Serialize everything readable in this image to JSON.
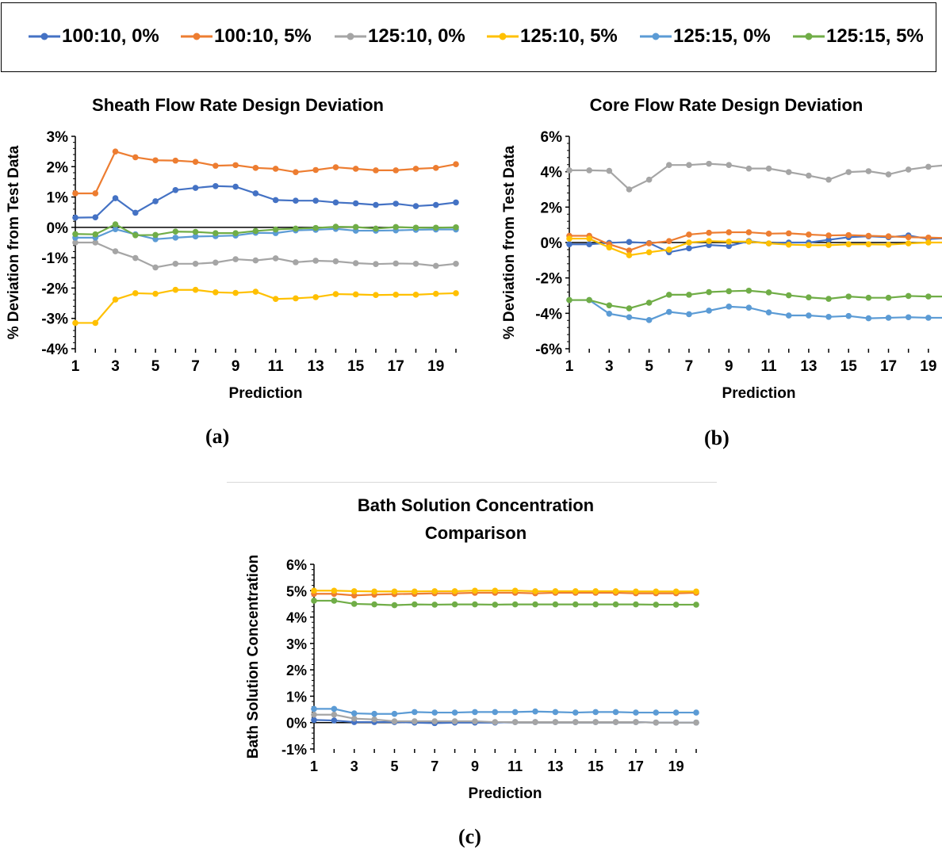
{
  "legend": [
    {
      "label": "100:10, 0%",
      "color": "#4472C4"
    },
    {
      "label": "100:10, 5%",
      "color": "#ED7D31"
    },
    {
      "label": "125:10, 0%",
      "color": "#A5A5A5"
    },
    {
      "label": "125:10, 5%",
      "color": "#FFC000"
    },
    {
      "label": "125:15, 0%",
      "color": "#5B9BD5"
    },
    {
      "label": "125:15, 5%",
      "color": "#70AD47"
    }
  ],
  "panel_labels": {
    "a": "(a)",
    "b": "(b)",
    "c": "(c)"
  },
  "chart_data": [
    {
      "type": "line",
      "title": "Sheath Flow Rate Design Deviation",
      "xlabel": "Prediction",
      "ylabel": "% Deviation from Test Data",
      "x": [
        1,
        2,
        3,
        4,
        5,
        6,
        7,
        8,
        9,
        10,
        11,
        12,
        13,
        14,
        15,
        16,
        17,
        18,
        19,
        20
      ],
      "x_ticks": [
        1,
        3,
        5,
        7,
        9,
        11,
        13,
        15,
        17,
        19
      ],
      "ylim": [
        -4,
        3
      ],
      "y_ticks": [
        -4,
        -3,
        -2,
        -1,
        0,
        1,
        2,
        3
      ],
      "y_tick_labels": [
        "-4%",
        "-3%",
        "-2%",
        "-1%",
        "0%",
        "1%",
        "2%",
        "3%"
      ],
      "series": [
        {
          "name": "100:10, 0%",
          "color": "#4472C4",
          "values": [
            0.32,
            0.33,
            0.96,
            0.48,
            0.86,
            1.23,
            1.3,
            1.36,
            1.34,
            1.12,
            0.9,
            0.88,
            0.88,
            0.82,
            0.79,
            0.74,
            0.78,
            0.7,
            0.74,
            0.82
          ]
        },
        {
          "name": "100:10, 5%",
          "color": "#ED7D31",
          "values": [
            1.12,
            1.12,
            2.5,
            2.31,
            2.21,
            2.2,
            2.16,
            2.03,
            2.05,
            1.96,
            1.93,
            1.82,
            1.89,
            1.98,
            1.93,
            1.88,
            1.88,
            1.93,
            1.96,
            2.08
          ]
        },
        {
          "name": "125:10, 0%",
          "color": "#A5A5A5",
          "values": [
            -0.5,
            -0.5,
            -0.79,
            -1.01,
            -1.32,
            -1.2,
            -1.2,
            -1.16,
            -1.05,
            -1.09,
            -1.02,
            -1.15,
            -1.1,
            -1.12,
            -1.18,
            -1.21,
            -1.19,
            -1.2,
            -1.27,
            -1.2
          ]
        },
        {
          "name": "125:10, 5%",
          "color": "#FFC000",
          "values": [
            -3.15,
            -3.15,
            -2.38,
            -2.17,
            -2.19,
            -2.06,
            -2.06,
            -2.14,
            -2.16,
            -2.12,
            -2.36,
            -2.34,
            -2.3,
            -2.2,
            -2.21,
            -2.23,
            -2.22,
            -2.22,
            -2.19,
            -2.17
          ]
        },
        {
          "name": "125:15, 0%",
          "color": "#5B9BD5",
          "values": [
            -0.34,
            -0.34,
            -0.06,
            -0.23,
            -0.39,
            -0.34,
            -0.3,
            -0.29,
            -0.27,
            -0.18,
            -0.19,
            -0.1,
            -0.08,
            -0.05,
            -0.11,
            -0.11,
            -0.1,
            -0.08,
            -0.07,
            -0.07
          ]
        },
        {
          "name": "125:15, 5%",
          "color": "#70AD47",
          "values": [
            -0.22,
            -0.23,
            0.1,
            -0.26,
            -0.25,
            -0.14,
            -0.15,
            -0.19,
            -0.19,
            -0.12,
            -0.07,
            -0.04,
            -0.02,
            0.02,
            0.01,
            -0.04,
            0.01,
            -0.01,
            -0.01,
            0.0
          ]
        }
      ]
    },
    {
      "type": "line",
      "title": "Core Flow Rate Design Deviation",
      "xlabel": "Prediction",
      "ylabel": "% Deviation from Test Data",
      "x": [
        1,
        2,
        3,
        4,
        5,
        6,
        7,
        8,
        9,
        10,
        11,
        12,
        13,
        14,
        15,
        16,
        17,
        18,
        19,
        20
      ],
      "x_ticks": [
        1,
        3,
        5,
        7,
        9,
        11,
        13,
        15,
        17,
        19
      ],
      "ylim": [
        -6,
        6
      ],
      "y_ticks": [
        -6,
        -4,
        -2,
        0,
        2,
        4,
        6
      ],
      "y_tick_labels": [
        "-6%",
        "-4%",
        "-2%",
        "0%",
        "2%",
        "4%",
        "6%"
      ],
      "series": [
        {
          "name": "100:10, 0%",
          "color": "#4472C4",
          "values": [
            -0.1,
            -0.1,
            -0.02,
            0.03,
            -0.03,
            -0.55,
            -0.33,
            -0.14,
            -0.2,
            0.08,
            -0.05,
            0.0,
            0.0,
            0.15,
            0.3,
            0.35,
            0.3,
            0.4,
            0.2,
            0.25
          ]
        },
        {
          "name": "100:10, 5%",
          "color": "#ED7D31",
          "values": [
            0.38,
            0.38,
            -0.1,
            -0.45,
            -0.05,
            0.08,
            0.45,
            0.55,
            0.58,
            0.58,
            0.5,
            0.52,
            0.45,
            0.4,
            0.42,
            0.38,
            0.35,
            0.3,
            0.28,
            0.25
          ]
        },
        {
          "name": "125:10, 0%",
          "color": "#A5A5A5",
          "values": [
            4.08,
            4.08,
            4.05,
            3.0,
            3.55,
            4.38,
            4.38,
            4.45,
            4.38,
            4.18,
            4.18,
            3.98,
            3.78,
            3.55,
            3.98,
            4.03,
            3.85,
            4.12,
            4.28,
            4.38
          ]
        },
        {
          "name": "125:10, 5%",
          "color": "#FFC000",
          "values": [
            0.22,
            0.22,
            -0.28,
            -0.72,
            -0.55,
            -0.4,
            0.0,
            0.08,
            0.05,
            0.05,
            -0.05,
            -0.12,
            -0.15,
            -0.15,
            -0.1,
            -0.1,
            -0.12,
            -0.05,
            0.0,
            0.0
          ]
        },
        {
          "name": "125:15, 0%",
          "color": "#5B9BD5",
          "values": [
            -3.25,
            -3.25,
            -4.02,
            -4.22,
            -4.38,
            -3.92,
            -4.05,
            -3.85,
            -3.62,
            -3.68,
            -3.95,
            -4.12,
            -4.12,
            -4.2,
            -4.15,
            -4.28,
            -4.25,
            -4.22,
            -4.25,
            -4.25
          ]
        },
        {
          "name": "125:15, 5%",
          "color": "#70AD47",
          "values": [
            -3.25,
            -3.25,
            -3.55,
            -3.72,
            -3.4,
            -2.95,
            -2.95,
            -2.8,
            -2.75,
            -2.72,
            -2.82,
            -2.98,
            -3.1,
            -3.18,
            -3.05,
            -3.12,
            -3.12,
            -3.02,
            -3.05,
            -3.05
          ]
        }
      ]
    },
    {
      "type": "line",
      "title": "Bath Solution Concentration Comparison",
      "title_lines": [
        "Bath Solution Concentration",
        "Comparison"
      ],
      "xlabel": "Prediction",
      "ylabel": "Bath Solution Concentration",
      "x": [
        1,
        2,
        3,
        4,
        5,
        6,
        7,
        8,
        9,
        10,
        11,
        12,
        13,
        14,
        15,
        16,
        17,
        18,
        19,
        20
      ],
      "x_ticks": [
        1,
        3,
        5,
        7,
        9,
        11,
        13,
        15,
        17,
        19
      ],
      "ylim": [
        -1,
        6
      ],
      "y_ticks": [
        -1,
        0,
        1,
        2,
        3,
        4,
        5,
        6
      ],
      "y_tick_labels": [
        "-1%",
        "0%",
        "1%",
        "2%",
        "3%",
        "4%",
        "5%",
        "6%"
      ],
      "series": [
        {
          "name": "100:10, 0%",
          "color": "#4472C4",
          "values": [
            0.1,
            0.08,
            0.02,
            0.02,
            0.02,
            0.0,
            -0.02,
            0.0,
            0.0,
            0.0,
            0.02,
            0.02,
            0.02,
            0.02,
            0.02,
            0.02,
            0.02,
            0.0,
            0.0,
            0.0
          ]
        },
        {
          "name": "100:10, 5%",
          "color": "#ED7D31",
          "values": [
            4.88,
            4.88,
            4.82,
            4.85,
            4.87,
            4.88,
            4.9,
            4.9,
            4.92,
            4.92,
            4.92,
            4.9,
            4.92,
            4.92,
            4.92,
            4.92,
            4.9,
            4.9,
            4.9,
            4.92
          ]
        },
        {
          "name": "125:10, 0%",
          "color": "#A5A5A5",
          "values": [
            0.3,
            0.3,
            0.15,
            0.12,
            0.05,
            0.05,
            0.05,
            0.05,
            0.05,
            0.02,
            0.02,
            0.02,
            0.02,
            0.02,
            0.02,
            0.02,
            0.02,
            0.0,
            0.0,
            0.0
          ]
        },
        {
          "name": "125:10, 5%",
          "color": "#FFC000",
          "values": [
            5.0,
            5.0,
            4.98,
            4.97,
            4.97,
            4.97,
            4.98,
            4.98,
            5.0,
            5.0,
            5.0,
            4.98,
            4.98,
            4.98,
            4.98,
            4.98,
            4.97,
            4.97,
            4.97,
            4.97
          ]
        },
        {
          "name": "125:15, 0%",
          "color": "#5B9BD5",
          "values": [
            0.52,
            0.52,
            0.35,
            0.33,
            0.33,
            0.4,
            0.38,
            0.38,
            0.4,
            0.4,
            0.4,
            0.42,
            0.4,
            0.38,
            0.4,
            0.4,
            0.38,
            0.38,
            0.38,
            0.38
          ]
        },
        {
          "name": "125:15, 5%",
          "color": "#70AD47",
          "values": [
            4.62,
            4.62,
            4.5,
            4.48,
            4.45,
            4.48,
            4.47,
            4.48,
            4.48,
            4.47,
            4.48,
            4.48,
            4.48,
            4.48,
            4.48,
            4.48,
            4.48,
            4.47,
            4.47,
            4.47
          ]
        }
      ]
    }
  ]
}
